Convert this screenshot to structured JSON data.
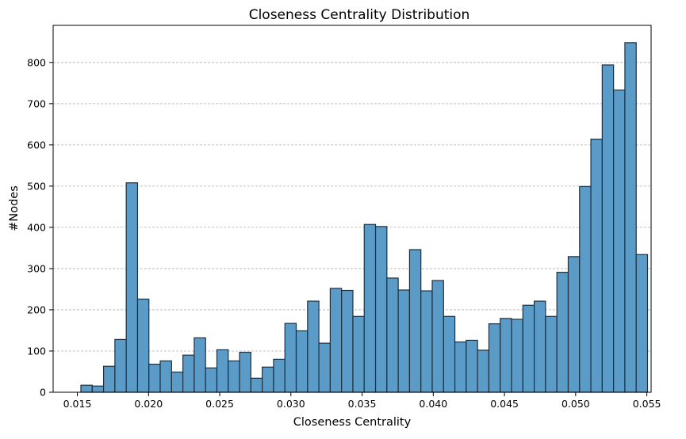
{
  "chart_data": {
    "type": "bar",
    "title": "Closeness Centrality Distribution",
    "xlabel": "Closeness Centrality",
    "ylabel": "#Nodes",
    "xlim": [
      0.0133,
      0.0553
    ],
    "ylim": [
      0,
      890
    ],
    "grid": "y-only, dashed",
    "bin_start": 0.01525,
    "bin_width": 0.000796,
    "values": [
      17,
      15,
      63,
      128,
      508,
      226,
      68,
      76,
      49,
      90,
      132,
      59,
      103,
      76,
      97,
      34,
      61,
      80,
      167,
      149,
      221,
      119,
      252,
      247,
      184,
      407,
      402,
      277,
      248,
      346,
      246,
      271,
      184,
      122,
      126,
      102,
      166,
      179,
      177,
      211,
      221,
      184,
      291,
      329,
      499,
      614,
      794,
      733,
      848,
      334
    ],
    "x_ticks": [
      "0.015",
      "0.020",
      "0.025",
      "0.030",
      "0.035",
      "0.040",
      "0.045",
      "0.050",
      "0.055"
    ],
    "y_ticks": [
      "0",
      "100",
      "200",
      "300",
      "400",
      "500",
      "600",
      "700",
      "800"
    ]
  }
}
